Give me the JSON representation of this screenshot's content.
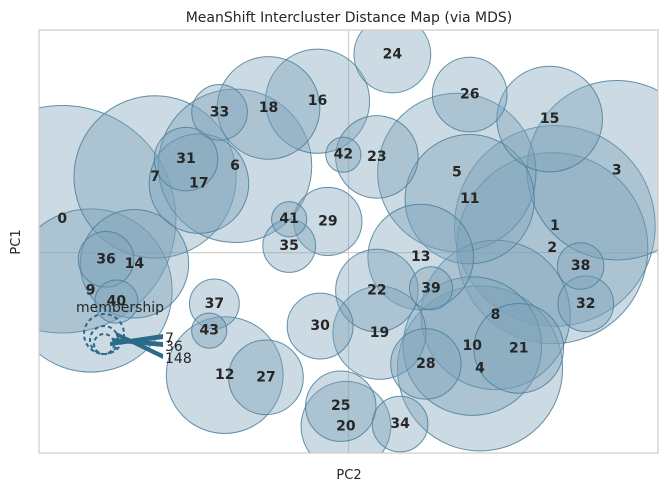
{
  "chart_data": {
    "type": "scatter",
    "title": "MeanShift Intercluster Distance Map (via MDS)",
    "xlabel": "PC2",
    "ylabel": "PC1",
    "grid": true,
    "legend": {
      "title": "membership",
      "placement": "bottom-left",
      "sizes": [
        "7",
        "36",
        "148"
      ]
    },
    "clusters": [
      {
        "label": "0",
        "x": -1.11,
        "y": 0.15,
        "size": 167
      },
      {
        "label": "1",
        "x": 0.8,
        "y": 0.12,
        "size": 130
      },
      {
        "label": "2",
        "x": 0.79,
        "y": 0.02,
        "size": 118
      },
      {
        "label": "3",
        "x": 1.04,
        "y": 0.37,
        "size": 104
      },
      {
        "label": "4",
        "x": 0.51,
        "y": -0.52,
        "size": 88
      },
      {
        "label": "5",
        "x": 0.42,
        "y": 0.36,
        "size": 81
      },
      {
        "label": "6",
        "x": -0.44,
        "y": 0.39,
        "size": 76
      },
      {
        "label": "7",
        "x": -0.75,
        "y": 0.34,
        "size": 85
      },
      {
        "label": "8",
        "x": 0.57,
        "y": -0.28,
        "size": 72
      },
      {
        "label": "9",
        "x": -1.0,
        "y": -0.17,
        "size": 86
      },
      {
        "label": "10",
        "x": 0.48,
        "y": -0.42,
        "size": 62
      },
      {
        "label": "11",
        "x": 0.47,
        "y": 0.24,
        "size": 54
      },
      {
        "label": "12",
        "x": -0.48,
        "y": -0.55,
        "size": 44
      },
      {
        "label": "13",
        "x": 0.28,
        "y": -0.02,
        "size": 36
      },
      {
        "label": "14",
        "x": -0.83,
        "y": -0.05,
        "size": 38
      },
      {
        "label": "15",
        "x": 0.78,
        "y": 0.6,
        "size": 36
      },
      {
        "label": "16",
        "x": -0.12,
        "y": 0.68,
        "size": 35
      },
      {
        "label": "17",
        "x": -0.58,
        "y": 0.31,
        "size": 32
      },
      {
        "label": "18",
        "x": -0.31,
        "y": 0.65,
        "size": 34
      },
      {
        "label": "19",
        "x": 0.12,
        "y": -0.36,
        "size": 28
      },
      {
        "label": "20",
        "x": -0.01,
        "y": -0.78,
        "size": 26
      },
      {
        "label": "21",
        "x": 0.66,
        "y": -0.43,
        "size": 26
      },
      {
        "label": "22",
        "x": 0.11,
        "y": -0.17,
        "size": 22
      },
      {
        "label": "23",
        "x": 0.11,
        "y": 0.43,
        "size": 22
      },
      {
        "label": "24",
        "x": 0.17,
        "y": 0.89,
        "size": 19
      },
      {
        "label": "25",
        "x": -0.03,
        "y": -0.69,
        "size": 16
      },
      {
        "label": "26",
        "x": 0.47,
        "y": 0.71,
        "size": 18
      },
      {
        "label": "27",
        "x": -0.32,
        "y": -0.56,
        "size": 18
      },
      {
        "label": "28",
        "x": 0.3,
        "y": -0.5,
        "size": 16
      },
      {
        "label": "29",
        "x": -0.08,
        "y": 0.14,
        "size": 15
      },
      {
        "label": "30",
        "x": -0.11,
        "y": -0.33,
        "size": 14
      },
      {
        "label": "31",
        "x": -0.63,
        "y": 0.42,
        "size": 13
      },
      {
        "label": "32",
        "x": 0.92,
        "y": -0.23,
        "size": 10
      },
      {
        "label": "33",
        "x": -0.5,
        "y": 0.63,
        "size": 10
      },
      {
        "label": "34",
        "x": 0.2,
        "y": -0.77,
        "size": 10
      },
      {
        "label": "35",
        "x": -0.23,
        "y": 0.03,
        "size": 9
      },
      {
        "label": "36",
        "x": -0.94,
        "y": -0.03,
        "size": 10
      },
      {
        "label": "37",
        "x": -0.52,
        "y": -0.23,
        "size": 8
      },
      {
        "label": "38",
        "x": 0.9,
        "y": -0.06,
        "size": 7
      },
      {
        "label": "39",
        "x": 0.32,
        "y": -0.16,
        "size": 6
      },
      {
        "label": "40",
        "x": -0.9,
        "y": -0.22,
        "size": 6
      },
      {
        "label": "41",
        "x": -0.23,
        "y": 0.15,
        "size": 4
      },
      {
        "label": "42",
        "x": -0.02,
        "y": 0.44,
        "size": 4
      },
      {
        "label": "43",
        "x": -0.54,
        "y": -0.35,
        "size": 4
      }
    ],
    "xlim": [
      -1.2,
      1.2
    ],
    "ylim": [
      -0.9,
      1.0
    ]
  }
}
